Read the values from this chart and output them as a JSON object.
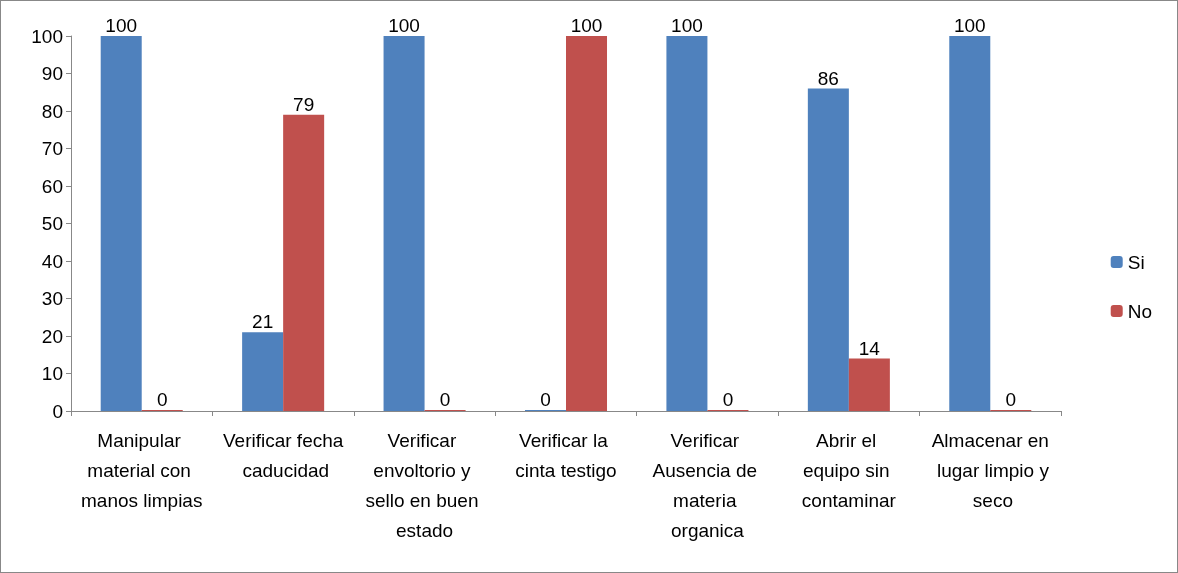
{
  "chart_data": {
    "type": "bar",
    "categories": [
      "Manipular material con manos limpias",
      "Verificar fecha caducidad",
      "Verificar envoltorio y sello en buen estado",
      "Verificar la cinta testigo",
      "Verificar Ausencia de materia organica",
      "Abrir el equipo sin contaminar",
      "Almacenar en lugar limpio y seco"
    ],
    "series": [
      {
        "name": "Si",
        "color": "#4f81bd",
        "values": [
          100,
          21,
          100,
          0,
          100,
          86,
          100
        ]
      },
      {
        "name": "No",
        "color": "#c0504d",
        "values": [
          0,
          79,
          0,
          100,
          0,
          14,
          0
        ]
      }
    ],
    "ylim": [
      0,
      100
    ],
    "yticks": [
      0,
      10,
      20,
      30,
      40,
      50,
      60,
      70,
      80,
      90,
      100
    ],
    "grid": false,
    "legend": "right",
    "data_labels": true
  }
}
